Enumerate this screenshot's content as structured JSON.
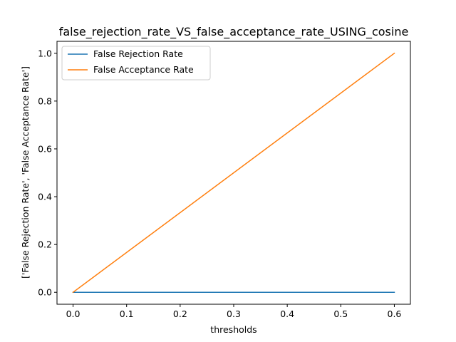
{
  "chart_data": {
    "type": "line",
    "title": "false_rejection_rate_VS_false_acceptance_rate_USING_cosine",
    "xlabel": "thresholds",
    "ylabel": "['False Rejection Rate', 'False Acceptance Rate']",
    "x": [
      0.0,
      0.6
    ],
    "xlim": [
      -0.03,
      0.63
    ],
    "ylim": [
      -0.05,
      1.05
    ],
    "xticks": [
      "0.0",
      "0.1",
      "0.2",
      "0.3",
      "0.4",
      "0.5",
      "0.6"
    ],
    "yticks": [
      "0.0",
      "0.2",
      "0.4",
      "0.6",
      "0.8",
      "1.0"
    ],
    "grid": false,
    "legend_position": "top-left",
    "series": [
      {
        "name": "False Rejection Rate",
        "color": "#1f77b4",
        "values": [
          0.0,
          0.0
        ]
      },
      {
        "name": "False Acceptance Rate",
        "color": "#ff7f0e",
        "values": [
          0.0,
          1.0
        ]
      }
    ]
  }
}
